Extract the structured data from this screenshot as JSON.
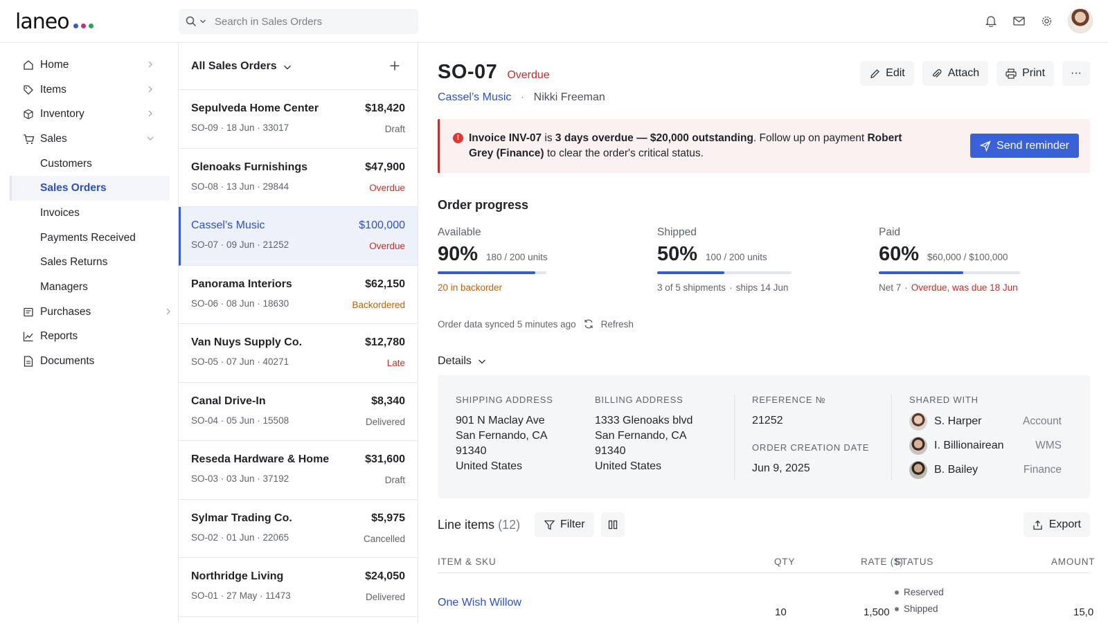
{
  "app": {
    "logo_text": "laneo",
    "logo_dot_colors": [
      "#3a5cc7",
      "#c0307a",
      "#2e9e5b"
    ]
  },
  "search": {
    "placeholder": "Search in Sales Orders"
  },
  "sidebar": {
    "items": [
      {
        "label": "Home",
        "icon": "home-icon"
      },
      {
        "label": "Items",
        "icon": "tag-icon"
      },
      {
        "label": "Inventory",
        "icon": "box-icon"
      },
      {
        "label": "Sales",
        "icon": "cart-icon",
        "expanded": true
      },
      {
        "label": "Customers"
      },
      {
        "label": "Sales Orders",
        "active": true
      },
      {
        "label": "Invoices"
      },
      {
        "label": "Payments Received"
      },
      {
        "label": "Sales Returns"
      },
      {
        "label": "Managers"
      },
      {
        "label": "Purchases",
        "icon": "receipt-icon"
      },
      {
        "label": "Reports",
        "icon": "chart-icon"
      },
      {
        "label": "Documents",
        "icon": "document-icon"
      }
    ]
  },
  "orders": {
    "header": "All Sales Orders",
    "list": [
      {
        "name": "Sepulveda Home Center",
        "amount": "$18,420",
        "meta": "SO-09 · 18 Jun · 33017",
        "status": "Draft"
      },
      {
        "name": "Glenoaks Furnishings",
        "amount": "$47,900",
        "meta": "SO-08 · 13 Jun · 29844",
        "status": "Overdue"
      },
      {
        "name": "Cassel’s Music",
        "amount": "$100,000",
        "meta": "SO-07 · 09 Jun · 21252",
        "status": "Overdue",
        "selected": true
      },
      {
        "name": "Panorama Interiors",
        "amount": "$62,150",
        "meta": "SO-06 · 08 Jun · 18630",
        "status": "Backordered"
      },
      {
        "name": "Van Nuys Supply Co.",
        "amount": "$12,780",
        "meta": "SO-05 · 07 Jun · 40271",
        "status": "Late"
      },
      {
        "name": "Canal Drive-In",
        "amount": "$8,340",
        "meta": "SO-04 · 05 Jun · 15508",
        "status": "Delivered"
      },
      {
        "name": "Reseda Hardware & Home",
        "amount": "$31,600",
        "meta": "SO-03 · 03 Jun · 37192",
        "status": "Draft"
      },
      {
        "name": "Sylmar Trading Co.",
        "amount": "$5,975",
        "meta": "SO-02 · 01 Jun · 22065",
        "status": "Cancelled"
      },
      {
        "name": "Northridge Living",
        "amount": "$24,050",
        "meta": "SO-01 · 27 May · 11473",
        "status": "Delivered"
      }
    ]
  },
  "detail": {
    "order_id": "SO-07",
    "status": "Overdue",
    "customer": "Cassel’s Music",
    "separator": "·",
    "contact": "Nikki Freeman",
    "actions": {
      "edit": "Edit",
      "attach": "Attach",
      "print": "Print",
      "more": "···"
    },
    "alert": {
      "icon_glyph": "!",
      "part1": "Invoice INV-07",
      "part2": " is ",
      "part3": "3 days overdue — $20,000 outstanding",
      "part4": ". Follow up on payment ",
      "part5": "Robert Grey (Finance)",
      "part6": " to clear the order's critical status.",
      "button": "Send reminder"
    },
    "progress": {
      "title": "Order progress",
      "items": [
        {
          "label": "Available",
          "pct": "90%",
          "units": "180 / 200 units",
          "fraction": 0.9,
          "note1": "20 in backorder",
          "note2": ""
        },
        {
          "label": "Shipped",
          "pct": "50%",
          "units": "100 / 200 units",
          "fraction": 0.5,
          "note1": "3 of 5 shipments",
          "note2": "ships 14 Jun"
        },
        {
          "label": "Paid",
          "pct": "60%",
          "units": "$60,000 / $100,000",
          "fraction": 0.6,
          "note1": "Net 7",
          "note2": "Overdue, was due 18 Jun"
        }
      ],
      "sync_text": "Order data synced 5 minutes ago",
      "refresh": "Refresh"
    },
    "details": {
      "title": "Details",
      "shipping_label": "SHIPPING ADDRESS",
      "shipping": [
        "901 N Maclay Ave",
        "San Fernando, CA",
        "91340",
        "United States"
      ],
      "billing_label": "BILLING ADDRESS",
      "billing": [
        "1333 Glenoaks blvd",
        "San Fernando, CA",
        "91340",
        "United States"
      ],
      "reference_label": "REFERENCE №",
      "reference": "21252",
      "created_label": "ORDER CREATION DATE",
      "created": "Jun 9, 2025",
      "shared_label": "SHARED WITH",
      "shared": [
        {
          "name": "S. Harper",
          "role": "Account"
        },
        {
          "name": "I. Billionairean",
          "role": "WMS"
        },
        {
          "name": "B. Bailey",
          "role": "Finance"
        }
      ]
    },
    "line_items": {
      "title": "Line items",
      "count": "(12)",
      "filter": "Filter",
      "export": "Export",
      "columns": {
        "item": "ITEM & SKU",
        "qty": "QTY",
        "rate": "RATE ($)",
        "status": "STATUS",
        "amount": "AMOUNT"
      },
      "rows": [
        {
          "item": "One Wish Willow",
          "qty": "10",
          "rate": "1,500",
          "status1": "Reserved",
          "status2": "Shipped",
          "amount": "15,0"
        }
      ]
    }
  }
}
